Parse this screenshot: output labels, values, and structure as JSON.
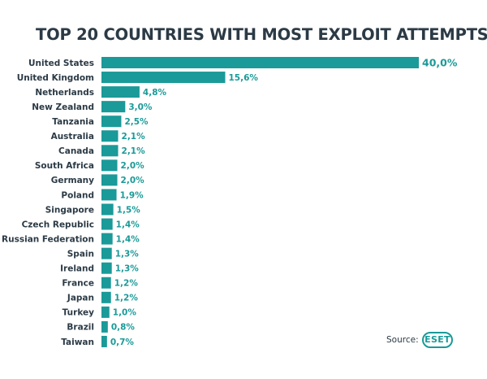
{
  "brand": {
    "accent": "#1a9a98",
    "text": "#2b3a45",
    "logo_text": "ESET"
  },
  "source_label": "Source:",
  "chart_data": {
    "type": "bar",
    "orientation": "horizontal",
    "title": "TOP 20 COUNTRIES WITH MOST EXPLOIT ATTEMPTS",
    "xlabel": "",
    "ylabel": "",
    "grid": false,
    "unit": "%",
    "xlim": [
      0,
      40
    ],
    "categories": [
      "United States",
      "United Kingdom",
      "Netherlands",
      "New Zealand",
      "Tanzania",
      "Australia",
      "Canada",
      "South Africa",
      "Germany",
      "Poland",
      "Singapore",
      "Czech Republic",
      "Russian Federation",
      "Spain",
      "Ireland",
      "France",
      "Japan",
      "Turkey",
      "Brazil",
      "Taiwan"
    ],
    "values": [
      40.0,
      15.6,
      4.8,
      3.0,
      2.5,
      2.1,
      2.1,
      2.0,
      2.0,
      1.9,
      1.5,
      1.4,
      1.4,
      1.3,
      1.3,
      1.2,
      1.2,
      1.0,
      0.8,
      0.7
    ],
    "value_labels": [
      "40,0%",
      "15,6%",
      "4,8%",
      "3,0%",
      "2,5%",
      "2,1%",
      "2,1%",
      "2,0%",
      "2,0%",
      "1,9%",
      "1,5%",
      "1,4%",
      "1,4%",
      "1,3%",
      "1,3%",
      "1,2%",
      "1,2%",
      "1,0%",
      "0,8%",
      "0,7%"
    ]
  }
}
